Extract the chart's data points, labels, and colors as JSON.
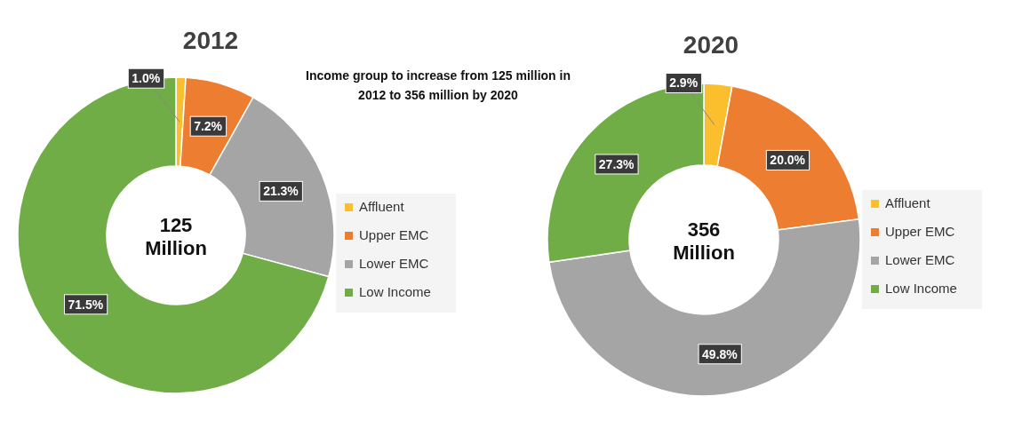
{
  "chart_data": [
    {
      "type": "donut",
      "title": "2012",
      "subtitle": "Income group to increase from 125 million in 2012 to 356 million by 2020",
      "annotations": [
        "125 Million"
      ],
      "categories": [
        "Affluent",
        "Upper EMC",
        "Lower EMC",
        "Low Income"
      ],
      "values": [
        1.0,
        7.2,
        21.3,
        71.5
      ],
      "value_labels": [
        "1.0%",
        "7.2%",
        "21.3%",
        "71.5%"
      ],
      "colors": [
        "#fbbf2d",
        "#ed7d31",
        "#a5a5a5",
        "#70ad47"
      ],
      "legend": "right"
    },
    {
      "type": "donut",
      "title": "2020",
      "annotations": [
        "356 Million"
      ],
      "categories": [
        "Affluent",
        "Upper EMC",
        "Lower EMC",
        "Low Income"
      ],
      "values": [
        2.9,
        20.0,
        49.8,
        27.3
      ],
      "value_labels": [
        "2.9%",
        "20.0%",
        "49.8%",
        "27.3%"
      ],
      "colors": [
        "#fbbf2d",
        "#ed7d31",
        "#a5a5a5",
        "#70ad47"
      ],
      "legend": "right"
    }
  ]
}
